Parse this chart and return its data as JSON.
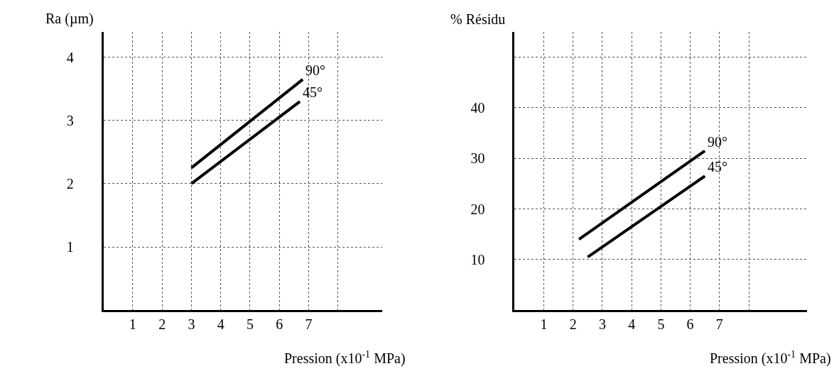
{
  "chart_data": [
    {
      "type": "line",
      "xlabel": "Pression (x10$^{-1}$ MPa)",
      "ylabel": "Ra (µm)",
      "xlim": [
        0,
        9.5
      ],
      "ylim": [
        0,
        4.4
      ],
      "xticks": [
        1,
        2,
        3,
        4,
        5,
        6,
        7,
        {
          "value": 8,
          "label": null
        }
      ],
      "yticks": [
        1,
        2,
        3,
        4
      ],
      "grid": true,
      "marker": "none",
      "line_style": "solid",
      "series": [
        {
          "name": "90°",
          "color": "#000000",
          "x": [
            3,
            6.8
          ],
          "values": [
            2.25,
            3.65
          ]
        },
        {
          "name": "45°",
          "color": "#000000",
          "x": [
            3,
            6.7
          ],
          "values": [
            2.0,
            3.3
          ]
        }
      ]
    },
    {
      "type": "line",
      "xlabel": "Pression (x10$^{-1}$ MPa)",
      "ylabel": "% Résidu",
      "xlim": [
        0,
        10
      ],
      "ylim": [
        0,
        55
      ],
      "xticks": [
        1,
        2,
        3,
        4,
        5,
        6,
        7,
        {
          "value": 8,
          "label": null
        }
      ],
      "yticks": [
        10,
        20,
        30,
        40,
        {
          "value": 50,
          "label": null
        }
      ],
      "grid": true,
      "marker": "none",
      "line_style": "solid",
      "series": [
        {
          "name": "90°",
          "color": "#000000",
          "x": [
            2.2,
            6.5
          ],
          "values": [
            14,
            31.5
          ]
        },
        {
          "name": "45°",
          "color": "#000000",
          "x": [
            2.5,
            6.5
          ],
          "values": [
            10.5,
            26.5
          ]
        }
      ]
    }
  ]
}
